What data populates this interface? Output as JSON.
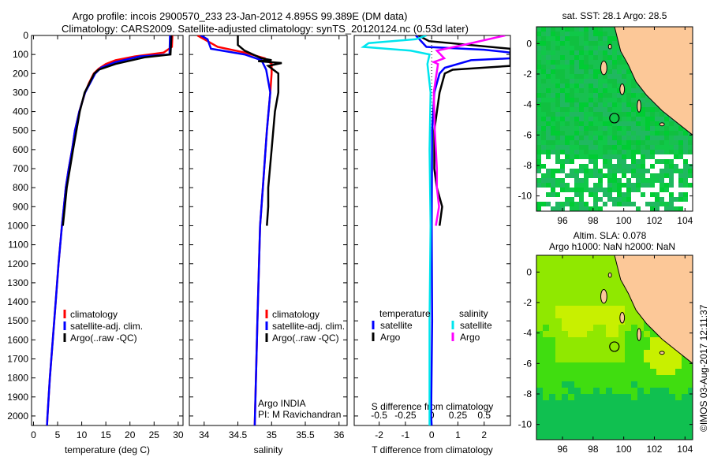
{
  "title_line1": "Argo profile: incois 2900570_233 23-Jan-2012 4.895S 99.389E (DM data)",
  "title_line2": "Climatology: CARS2009. Satellite-adjusted climatology: synTS_20120124.nc (0.53d later)",
  "colors": {
    "climatology": "#ff0000",
    "satellite": "#0000ff",
    "argo": "#000000",
    "sat_salinity": "#00e5ee",
    "argo_salinity": "#ff00ff",
    "land": "#fcc898"
  },
  "chart_data": [
    {
      "type": "line",
      "id": "temperature",
      "xlabel": "temperature (deg C)",
      "ylabel": "",
      "xlim": [
        -0.4,
        31
      ],
      "ylim": [
        2050,
        0
      ],
      "xticks": [
        0,
        5,
        10,
        15,
        20,
        25,
        30
      ],
      "yticks": [
        0,
        100,
        200,
        300,
        400,
        500,
        600,
        700,
        800,
        900,
        1000,
        1100,
        1200,
        1300,
        1400,
        1500,
        1600,
        1700,
        1800,
        1900,
        2000
      ],
      "legend": [
        "climatology",
        "satellite-adj. clim.",
        "Argo(..raw -QC)"
      ],
      "series": [
        {
          "name": "climatology",
          "color": "#ff0000",
          "points": [
            [
              0,
              28.8
            ],
            [
              60,
              28.7
            ],
            [
              90,
              27
            ],
            [
              110,
              21
            ],
            [
              130,
              17
            ],
            [
              150,
              15
            ],
            [
              175,
              13.5
            ],
            [
              200,
              12.5
            ],
            [
              250,
              11.5
            ],
            [
              300,
              10.7
            ],
            [
              400,
              9.5
            ],
            [
              500,
              8.6
            ],
            [
              600,
              8
            ],
            [
              700,
              7.3
            ],
            [
              800,
              6.7
            ],
            [
              900,
              6.3
            ],
            [
              1000,
              5.9
            ],
            [
              1200,
              5.2
            ],
            [
              1400,
              4.6
            ],
            [
              1600,
              4.0
            ],
            [
              1800,
              3.4
            ],
            [
              2000,
              2.9
            ],
            [
              2050,
              2.8
            ]
          ]
        },
        {
          "name": "satellite-adj. clim.",
          "color": "#0000ff",
          "points": [
            [
              0,
              28.3
            ],
            [
              100,
              28.2
            ],
            [
              110,
              22
            ],
            [
              140,
              17
            ],
            [
              170,
              14
            ],
            [
              200,
              12.8
            ],
            [
              300,
              10.7
            ],
            [
              400,
              9.5
            ],
            [
              500,
              8.6
            ],
            [
              600,
              8
            ],
            [
              700,
              7.3
            ],
            [
              800,
              6.7
            ],
            [
              900,
              6.3
            ],
            [
              1000,
              5.9
            ],
            [
              1200,
              5.2
            ],
            [
              1400,
              4.6
            ],
            [
              1600,
              4.0
            ],
            [
              1800,
              3.4
            ],
            [
              2000,
              2.9
            ],
            [
              2050,
              2.8
            ]
          ]
        },
        {
          "name": "Argo(..raw -QC)",
          "color": "#000000",
          "points": [
            [
              0,
              28.6
            ],
            [
              100,
              28.4
            ],
            [
              115,
              23
            ],
            [
              150,
              17
            ],
            [
              180,
              13.5
            ],
            [
              200,
              12.6
            ],
            [
              300,
              10.6
            ],
            [
              400,
              9.6
            ],
            [
              600,
              8.2
            ],
            [
              800,
              6.9
            ],
            [
              900,
              6.5
            ],
            [
              1000,
              6.1
            ]
          ]
        }
      ]
    },
    {
      "type": "line",
      "id": "salinity",
      "xlabel": "salinity",
      "ylabel": "",
      "xlim": [
        33.78,
        36.12
      ],
      "ylim": [
        2050,
        0
      ],
      "xticks": [
        "34",
        "34.5",
        "35",
        "35.5",
        "36"
      ],
      "legend": [
        "climatology",
        "satellite-adj. clim.",
        "Argo(..raw -QC)"
      ],
      "annotation": [
        "Argo INDIA",
        "PI: M Ravichandran"
      ],
      "series": [
        {
          "name": "climatology",
          "color": "#ff0000",
          "points": [
            [
              0,
              33.9
            ],
            [
              60,
              34.2
            ],
            [
              90,
              34.6
            ],
            [
              120,
              34.9
            ],
            [
              150,
              35.0
            ],
            [
              200,
              35.0
            ],
            [
              300,
              34.98
            ],
            [
              500,
              34.93
            ],
            [
              800,
              34.87
            ],
            [
              1000,
              34.83
            ],
            [
              1500,
              34.79
            ],
            [
              2050,
              34.75
            ]
          ]
        },
        {
          "name": "satellite-adj. clim.",
          "color": "#0000ff",
          "points": [
            [
              0,
              33.95
            ],
            [
              20,
              34.05
            ],
            [
              70,
              34.1
            ],
            [
              100,
              34.6
            ],
            [
              130,
              34.85
            ],
            [
              180,
              34.92
            ],
            [
              300,
              34.98
            ],
            [
              500,
              34.93
            ],
            [
              800,
              34.87
            ],
            [
              1000,
              34.83
            ],
            [
              1500,
              34.79
            ],
            [
              2050,
              34.75
            ]
          ]
        },
        {
          "name": "Argo(..raw -QC)",
          "color": "#000000",
          "points": [
            [
              0,
              34.5
            ],
            [
              50,
              34.5
            ],
            [
              80,
              34.6
            ],
            [
              120,
              34.85
            ],
            [
              130,
              35.0
            ],
            [
              135,
              34.8
            ],
            [
              145,
              35.15
            ],
            [
              160,
              34.95
            ],
            [
              200,
              35.1
            ],
            [
              300,
              35.1
            ],
            [
              400,
              35.05
            ],
            [
              600,
              35.0
            ],
            [
              800,
              34.95
            ],
            [
              900,
              34.95
            ],
            [
              1000,
              34.93
            ]
          ]
        }
      ]
    },
    {
      "type": "line",
      "id": "difference",
      "xlabel": "T difference from climatology",
      "x2label": "S difference from climatology",
      "xlim": [
        -2.95,
        3.0
      ],
      "ylim": [
        2050,
        0
      ],
      "xticks": [
        "-2",
        "-1",
        "0",
        "1",
        "2"
      ],
      "x2ticks": [
        "-0.5",
        "-0.25",
        "0",
        "0.25",
        "0.5"
      ],
      "s_to_t_scale": 4,
      "legend_headers": [
        "temperature",
        "salinity"
      ],
      "legend": [
        "satellite",
        "Argo",
        "satellite",
        "Argo"
      ],
      "series": [
        {
          "name": "T satellite",
          "color": "#0000ff",
          "var": "T",
          "points": [
            [
              0,
              -0.6
            ],
            [
              60,
              -0.2
            ],
            [
              75,
              2.0
            ],
            [
              90,
              3.0
            ],
            [
              120,
              3.0
            ],
            [
              130,
              1.5
            ],
            [
              170,
              0.5
            ],
            [
              200,
              0.3
            ],
            [
              300,
              0.1
            ],
            [
              500,
              0.02
            ],
            [
              1000,
              0
            ],
            [
              1500,
              0.02
            ],
            [
              2000,
              -0.02
            ],
            [
              2050,
              0
            ]
          ]
        },
        {
          "name": "T Argo",
          "color": "#000000",
          "var": "T",
          "points": [
            [
              0,
              -0.5
            ],
            [
              30,
              -0.1
            ],
            [
              70,
              3.0
            ],
            [
              160,
              3.0
            ],
            [
              180,
              0.8
            ],
            [
              200,
              0.5
            ],
            [
              300,
              0.3
            ],
            [
              500,
              0.1
            ],
            [
              700,
              0.1
            ],
            [
              800,
              0.2
            ],
            [
              900,
              0.4
            ],
            [
              1000,
              0.3
            ]
          ]
        },
        {
          "name": "S satellite",
          "color": "#00e5ee",
          "var": "S",
          "points": [
            [
              0,
              -0.05
            ],
            [
              20,
              -0.15
            ],
            [
              40,
              -0.6
            ],
            [
              60,
              -0.65
            ],
            [
              80,
              -0.2
            ],
            [
              100,
              -0.02
            ],
            [
              150,
              -0.04
            ],
            [
              300,
              -0.01
            ],
            [
              600,
              -0.02
            ],
            [
              1000,
              -0.01
            ],
            [
              1500,
              -0.02
            ],
            [
              2050,
              -0.02
            ]
          ]
        },
        {
          "name": "S Argo",
          "color": "#ff00ff",
          "var": "S",
          "points": [
            [
              0,
              0.7
            ],
            [
              50,
              0.3
            ],
            [
              80,
              0.05
            ],
            [
              120,
              0.12
            ],
            [
              140,
              0.02
            ],
            [
              150,
              0.06
            ],
            [
              300,
              0.02
            ],
            [
              500,
              0.03
            ],
            [
              700,
              0.05
            ],
            [
              800,
              0.05
            ],
            [
              900,
              0.07
            ],
            [
              1000,
              0.04
            ]
          ]
        }
      ]
    },
    {
      "type": "heatmap",
      "id": "sst-map",
      "title": "sat. SST: 28.1 Argo: 28.5",
      "xlim": [
        94.3,
        104.5
      ],
      "ylim": [
        -11,
        1.1
      ],
      "xticks": [
        "96",
        "98",
        "100",
        "102",
        "104"
      ],
      "yticks": [
        "0",
        "-2",
        "-4",
        "-6",
        "-8",
        "-10"
      ],
      "argo_position": [
        99.389,
        -4.895
      ]
    },
    {
      "type": "heatmap",
      "id": "sla-map",
      "title": "Altim. SLA: 0.078",
      "subtitle": "Argo h1000: NaN h2000: NaN",
      "xlim": [
        94.3,
        104.5
      ],
      "ylim": [
        -11,
        1.1
      ],
      "xticks": [
        "96",
        "98",
        "100",
        "102",
        "104"
      ],
      "yticks": [
        "0",
        "-2",
        "-4",
        "-6",
        "-8",
        "-10"
      ],
      "argo_position": [
        99.389,
        -4.895
      ]
    }
  ],
  "credit": "©IMOS 03-Aug-2017 12:11:37"
}
